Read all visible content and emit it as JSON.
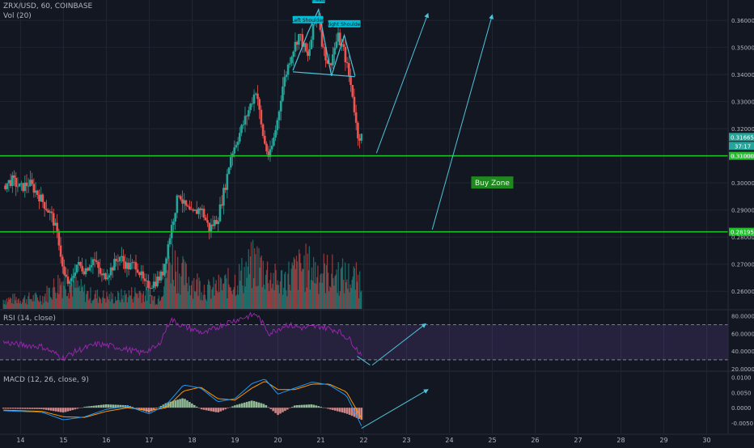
{
  "header": {
    "symbol": "ZRX/USD, 60, COINBASE",
    "volume_label": "Vol (20)"
  },
  "colors": {
    "background": "#131722",
    "grid": "#1f2533",
    "axis_text": "#b2b5be",
    "up": "#26a69a",
    "down": "#ef5350",
    "level_line": "#1fbf2a",
    "arrow": "#4fc3d9",
    "rsi_line": "#9c27b0",
    "macd_line": "#2196f3",
    "signal_line": "#ff9800"
  },
  "chart_data": [
    {
      "type": "candlestick",
      "x_dates": [
        "14",
        "15",
        "16",
        "17",
        "18",
        "19",
        "20",
        "21",
        "22",
        "23",
        "24",
        "25",
        "26",
        "27",
        "28",
        "29",
        "30"
      ],
      "y_ticks": [
        "0.360000",
        "0.350000",
        "0.340000",
        "0.330000",
        "0.320000",
        "0.310000",
        "0.300000",
        "0.290000",
        "0.280000",
        "0.270000",
        "0.260000"
      ],
      "ylim": [
        0.2535,
        0.3675
      ],
      "price_tags": [
        "0.316655",
        "37:17",
        "0.310000",
        "0.281953"
      ],
      "levels": [
        0.31,
        0.281953
      ],
      "annotations": [
        "Head",
        "Left Shoulder",
        "Right Shoulder",
        "Buy Zone"
      ],
      "price_path": [
        [
          13.6,
          0.299
        ],
        [
          13.8,
          0.301
        ],
        [
          14.0,
          0.298
        ],
        [
          14.2,
          0.3
        ],
        [
          14.4,
          0.296
        ],
        [
          14.6,
          0.291
        ],
        [
          14.75,
          0.287
        ],
        [
          14.9,
          0.278
        ],
        [
          15.0,
          0.266
        ],
        [
          15.15,
          0.262
        ],
        [
          15.3,
          0.27
        ],
        [
          15.5,
          0.268
        ],
        [
          15.7,
          0.272
        ],
        [
          15.9,
          0.265
        ],
        [
          16.1,
          0.268
        ],
        [
          16.3,
          0.273
        ],
        [
          16.5,
          0.269
        ],
        [
          16.7,
          0.27
        ],
        [
          16.9,
          0.262
        ],
        [
          17.1,
          0.263
        ],
        [
          17.3,
          0.266
        ],
        [
          17.5,
          0.282
        ],
        [
          17.6,
          0.29
        ],
        [
          17.7,
          0.297
        ],
        [
          17.8,
          0.292
        ],
        [
          18.0,
          0.288
        ],
        [
          18.2,
          0.291
        ],
        [
          18.4,
          0.283
        ],
        [
          18.6,
          0.287
        ],
        [
          18.8,
          0.301
        ],
        [
          18.9,
          0.31
        ],
        [
          19.1,
          0.318
        ],
        [
          19.3,
          0.326
        ],
        [
          19.5,
          0.335
        ],
        [
          19.6,
          0.322
        ],
        [
          19.7,
          0.314
        ],
        [
          19.8,
          0.309
        ],
        [
          19.9,
          0.316
        ],
        [
          20.0,
          0.324
        ],
        [
          20.1,
          0.335
        ],
        [
          20.3,
          0.347
        ],
        [
          20.5,
          0.355
        ],
        [
          20.7,
          0.346
        ],
        [
          20.85,
          0.359
        ],
        [
          20.95,
          0.362
        ],
        [
          21.05,
          0.35
        ],
        [
          21.2,
          0.343
        ],
        [
          21.4,
          0.354
        ],
        [
          21.55,
          0.348
        ],
        [
          21.65,
          0.34
        ],
        [
          21.75,
          0.332
        ],
        [
          21.85,
          0.318
        ],
        [
          21.95,
          0.317
        ]
      ],
      "volume_ylim": [
        0,
        1
      ],
      "volume_profile": [
        [
          13.6,
          0.1
        ],
        [
          14.5,
          0.12
        ],
        [
          15.0,
          0.32
        ],
        [
          15.6,
          0.15
        ],
        [
          16.2,
          0.12
        ],
        [
          16.8,
          0.18
        ],
        [
          17.2,
          0.1
        ],
        [
          17.5,
          0.55
        ],
        [
          17.8,
          0.35
        ],
        [
          18.4,
          0.2
        ],
        [
          19.0,
          0.3
        ],
        [
          19.5,
          0.5
        ],
        [
          20.0,
          0.28
        ],
        [
          20.6,
          0.45
        ],
        [
          21.0,
          0.4
        ],
        [
          21.5,
          0.35
        ],
        [
          21.95,
          0.3
        ]
      ]
    },
    {
      "type": "line",
      "title": "RSI (14, close)",
      "y_ticks": [
        "80.0000",
        "60.0000",
        "40.0000",
        "20.0000"
      ],
      "ylim": [
        18,
        86
      ],
      "band": [
        30,
        70
      ],
      "series": [
        {
          "values": [
            [
              13.6,
              50
            ],
            [
              14.0,
              47
            ],
            [
              14.5,
              45
            ],
            [
              15.0,
              32
            ],
            [
              15.3,
              40
            ],
            [
              15.8,
              48
            ],
            [
              16.3,
              44
            ],
            [
              16.8,
              38
            ],
            [
              17.2,
              45
            ],
            [
              17.5,
              76
            ],
            [
              17.8,
              68
            ],
            [
              18.3,
              60
            ],
            [
              18.8,
              72
            ],
            [
              19.2,
              78
            ],
            [
              19.5,
              82
            ],
            [
              19.8,
              60
            ],
            [
              20.2,
              70
            ],
            [
              20.6,
              66
            ],
            [
              21.0,
              68
            ],
            [
              21.4,
              63
            ],
            [
              21.7,
              52
            ],
            [
              21.9,
              38
            ]
          ]
        }
      ]
    },
    {
      "type": "line",
      "title": "MACD (12, 26, close, 9)",
      "y_ticks": [
        "0.0100",
        "0.0050",
        "0.0000",
        "-0.0050"
      ],
      "ylim": [
        -0.0085,
        0.0118
      ],
      "series": [
        {
          "values": [
            [
              13.6,
              -0.001
            ],
            [
              14.5,
              -0.0015
            ],
            [
              15.0,
              -0.004
            ],
            [
              15.5,
              -0.003
            ],
            [
              16.0,
              -0.0005
            ],
            [
              16.5,
              0.0005
            ],
            [
              17.0,
              -0.002
            ],
            [
              17.4,
              0.001
            ],
            [
              17.8,
              0.0075
            ],
            [
              18.2,
              0.0065
            ],
            [
              18.6,
              0.002
            ],
            [
              19.0,
              0.003
            ],
            [
              19.4,
              0.008
            ],
            [
              19.7,
              0.0095
            ],
            [
              20.0,
              0.0045
            ],
            [
              20.4,
              0.0065
            ],
            [
              20.8,
              0.0085
            ],
            [
              21.2,
              0.0075
            ],
            [
              21.6,
              0.004
            ],
            [
              21.95,
              -0.006
            ]
          ]
        },
        {
          "values": [
            [
              13.6,
              -0.0008
            ],
            [
              14.5,
              -0.0012
            ],
            [
              15.0,
              -0.003
            ],
            [
              15.5,
              -0.0032
            ],
            [
              16.0,
              -0.0012
            ],
            [
              16.5,
              0.0
            ],
            [
              17.0,
              -0.001
            ],
            [
              17.4,
              0.0
            ],
            [
              17.8,
              0.0055
            ],
            [
              18.2,
              0.0068
            ],
            [
              18.6,
              0.003
            ],
            [
              19.0,
              0.0025
            ],
            [
              19.4,
              0.0065
            ],
            [
              19.7,
              0.0088
            ],
            [
              20.0,
              0.006
            ],
            [
              20.4,
              0.006
            ],
            [
              20.8,
              0.0078
            ],
            [
              21.2,
              0.0078
            ],
            [
              21.6,
              0.0052
            ],
            [
              21.95,
              -0.0035
            ]
          ]
        }
      ]
    }
  ]
}
